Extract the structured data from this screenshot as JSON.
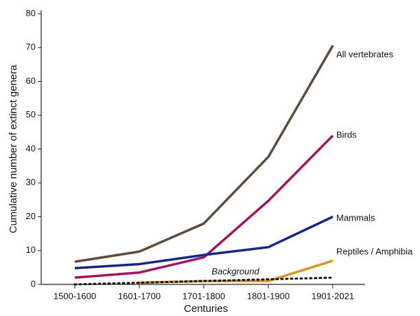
{
  "chart_data": {
    "type": "line",
    "x_label": "Centuries",
    "y_label": "Cumulative number of extinct genera",
    "categories": [
      "1500-1600",
      "1601-1700",
      "1701-1800",
      "1801-1900",
      "1901-2021"
    ],
    "series": [
      {
        "name": "All vertebrates",
        "color": "#5e4b3c",
        "values": [
          6.7,
          9.7,
          18,
          37.7,
          70.6
        ]
      },
      {
        "name": "Birds",
        "color": "#a0135f",
        "values": [
          2,
          3.5,
          8,
          24.7,
          44
        ]
      },
      {
        "name": "Mammals",
        "color": "#14288a",
        "values": [
          4.8,
          6,
          8.7,
          11,
          20
        ]
      },
      {
        "name": "Reptiles / Amphibia",
        "color": "#d49a1e",
        "values": [
          null,
          0.5,
          1,
          1,
          7
        ]
      },
      {
        "name": "Background",
        "color": "#111111",
        "dotted": true,
        "values": [
          0,
          0.5,
          1,
          1.5,
          2
        ]
      }
    ],
    "ylim": [
      0,
      80
    ],
    "yticks": [
      0,
      10,
      20,
      30,
      40,
      50,
      60,
      70,
      80
    ]
  }
}
